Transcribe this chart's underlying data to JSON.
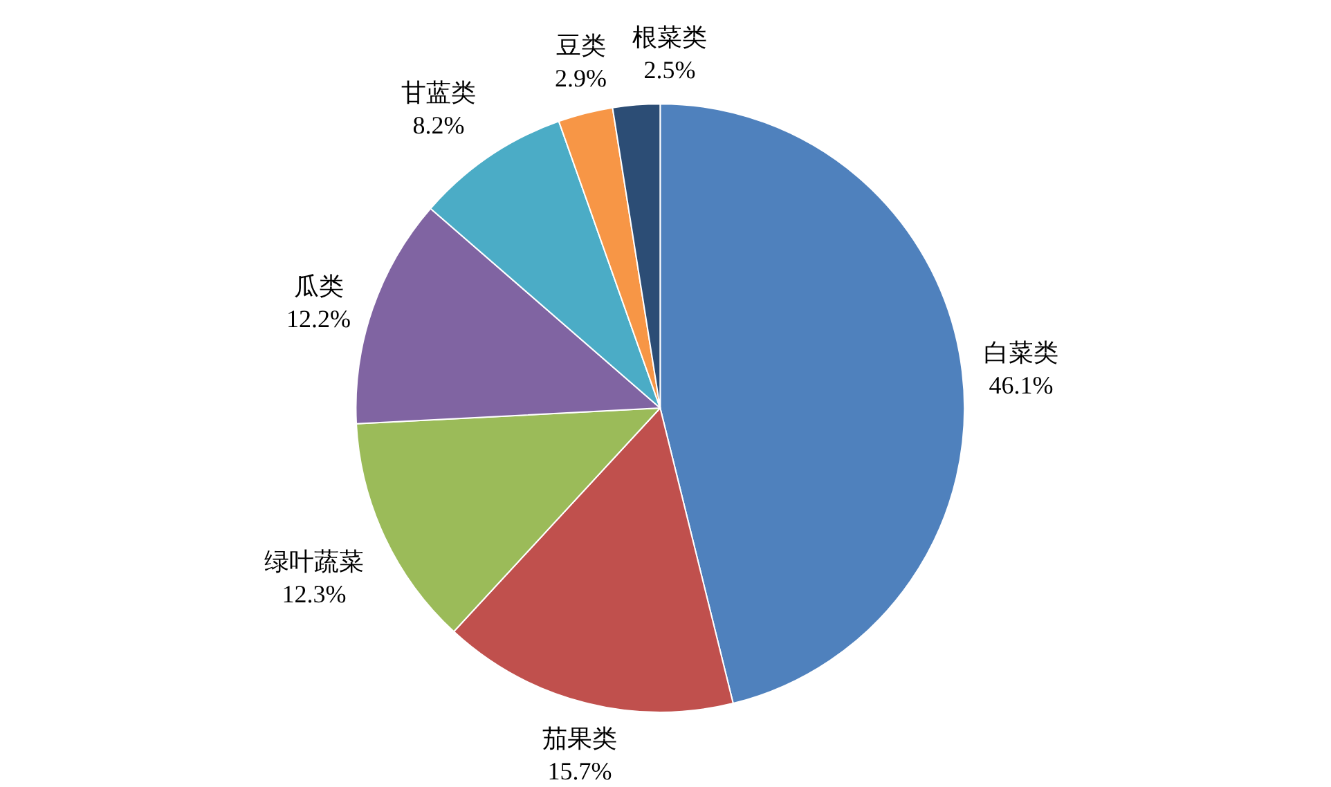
{
  "chart_data": {
    "type": "pie",
    "categories": [
      "白菜类",
      "茄果类",
      "绿叶蔬菜",
      "瓜类",
      "甘蓝类",
      "豆类",
      "根菜类"
    ],
    "values": [
      46.1,
      15.7,
      12.3,
      12.2,
      8.2,
      2.9,
      2.5
    ],
    "value_labels": [
      "46.1%",
      "15.7%",
      "12.3%",
      "12.2%",
      "8.2%",
      "2.9%",
      "2.5%"
    ],
    "colors": [
      "#4f81bd",
      "#c0504d",
      "#9bbb59",
      "#8064a2",
      "#4bacc6",
      "#f79646",
      "#2c4d75"
    ],
    "legend": false
  }
}
